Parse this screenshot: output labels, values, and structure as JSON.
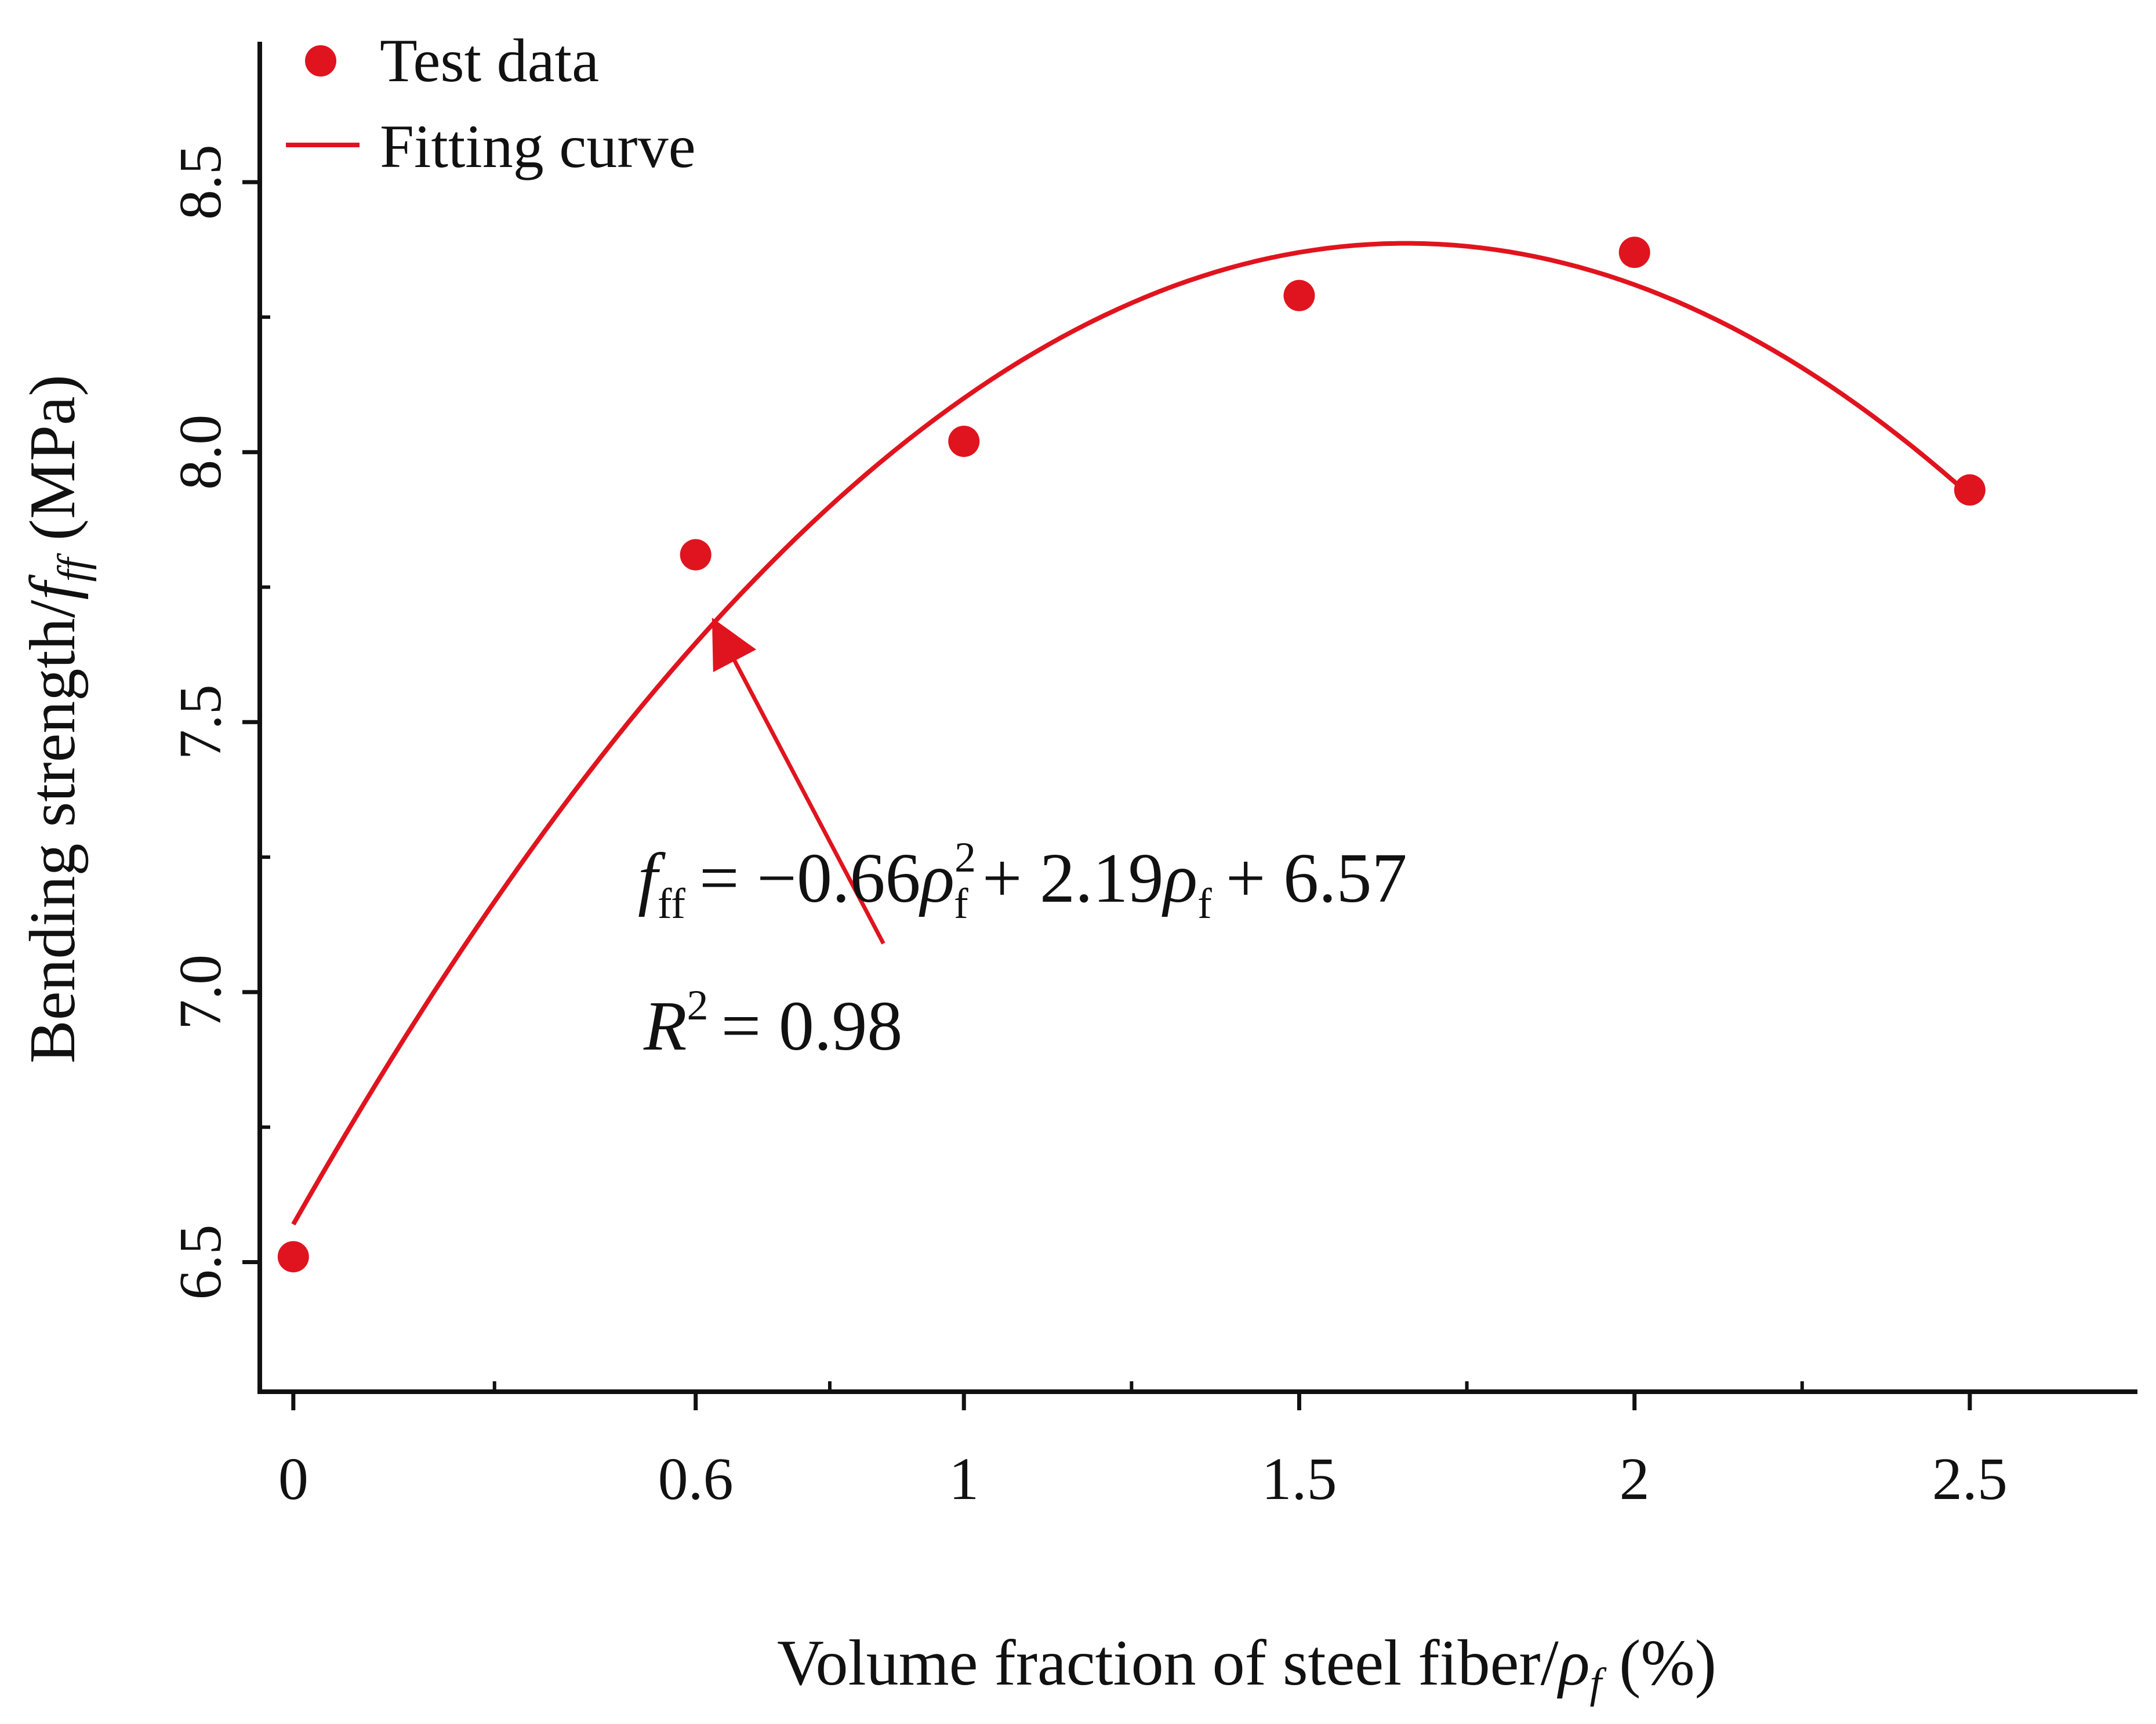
{
  "chart_data": {
    "type": "scatter",
    "title": "",
    "xlabel": "Volume fraction of steel fiber/ρf (%)",
    "xlabel_main": "Volume fraction of steel fiber/",
    "xlabel_sym": "ρ",
    "xlabel_sub": "f",
    "xlabel_unit": "(%)",
    "ylabel": "Bending strength/fff (MPa)",
    "ylabel_main": "Bending strength/",
    "ylabel_sym": "f",
    "ylabel_sub": "ff",
    "ylabel_unit": "(MPa)",
    "xlim": [
      -0.05,
      2.75
    ],
    "ylim": [
      6.26,
      8.76
    ],
    "x_ticks": [
      0,
      0.6,
      1,
      1.5,
      2,
      2.5
    ],
    "x_tick_labels": [
      "0",
      "0.6",
      "1",
      "1.5",
      "2",
      "2.5"
    ],
    "x_minor_ticks": [
      0.3,
      0.8,
      1.25,
      1.75,
      2.25
    ],
    "y_ticks": [
      6.5,
      7.0,
      7.5,
      8.0,
      8.5
    ],
    "y_tick_labels": [
      "6.5",
      "7.0",
      "7.5",
      "8.0",
      "8.5"
    ],
    "y_minor_ticks": [
      6.75,
      7.25,
      7.75,
      8.25
    ],
    "grid": false,
    "legend_position": "top-left",
    "colors": {
      "series": "#e0141e",
      "axis": "#111111"
    },
    "series": [
      {
        "name": "Test data",
        "kind": "scatter",
        "x": [
          0,
          0.6,
          1,
          1.5,
          2,
          2.5
        ],
        "y": [
          6.51,
          7.81,
          8.02,
          8.29,
          8.37,
          7.93
        ]
      },
      {
        "name": "Fitting curve",
        "kind": "line",
        "fit": {
          "a": -0.66,
          "b": 2.19,
          "c": 6.57,
          "x_range": [
            0,
            2.5
          ]
        }
      }
    ],
    "annotation": {
      "equation": {
        "lhs": "f",
        "lhs_sub": "ff",
        "eq": "= −0.66",
        "rho": "ρ",
        "rho_sub": "f",
        "rho_sup": "2",
        "mid": "+ 2.19",
        "rho2": "ρ",
        "rho2_sub": "f",
        "end": "+ 6.57"
      },
      "r2": {
        "symbol": "R",
        "sup": "2",
        "value": "= 0.98"
      },
      "arrow_target": {
        "x": 0.63,
        "y": 7.68
      },
      "arrow_tail": {
        "x": 0.88,
        "y": 7.09
      }
    }
  }
}
